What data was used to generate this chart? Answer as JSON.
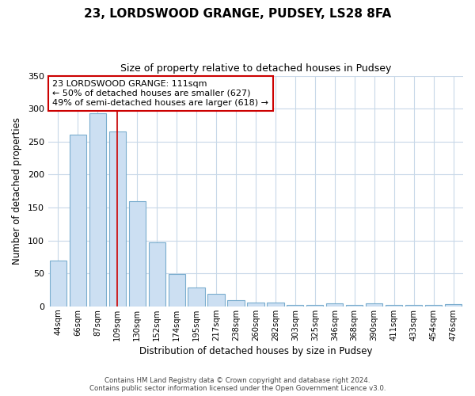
{
  "title": "23, LORDSWOOD GRANGE, PUDSEY, LS28 8FA",
  "subtitle": "Size of property relative to detached houses in Pudsey",
  "xlabel": "Distribution of detached houses by size in Pudsey",
  "ylabel": "Number of detached properties",
  "categories": [
    "44sqm",
    "66sqm",
    "87sqm",
    "109sqm",
    "130sqm",
    "152sqm",
    "174sqm",
    "195sqm",
    "217sqm",
    "238sqm",
    "260sqm",
    "282sqm",
    "303sqm",
    "325sqm",
    "346sqm",
    "368sqm",
    "390sqm",
    "411sqm",
    "433sqm",
    "454sqm",
    "476sqm"
  ],
  "values": [
    70,
    260,
    293,
    265,
    160,
    97,
    49,
    29,
    19,
    10,
    6,
    6,
    2,
    2,
    5,
    2,
    5,
    2,
    2,
    2,
    3
  ],
  "bar_color": "#ccdff2",
  "bar_edge_color": "#7aadce",
  "highlight_index": 3,
  "highlight_line_color": "#cc0000",
  "annotation_title": "23 LORDSWOOD GRANGE: 111sqm",
  "annotation_line1": "← 50% of detached houses are smaller (627)",
  "annotation_line2": "49% of semi-detached houses are larger (618) →",
  "annotation_box_color": "#ffffff",
  "annotation_box_edge": "#cc0000",
  "ylim": [
    0,
    350
  ],
  "yticks": [
    0,
    50,
    100,
    150,
    200,
    250,
    300,
    350
  ],
  "footer_line1": "Contains HM Land Registry data © Crown copyright and database right 2024.",
  "footer_line2": "Contains public sector information licensed under the Open Government Licence v3.0.",
  "background_color": "#ffffff",
  "grid_color": "#c8d8e8"
}
